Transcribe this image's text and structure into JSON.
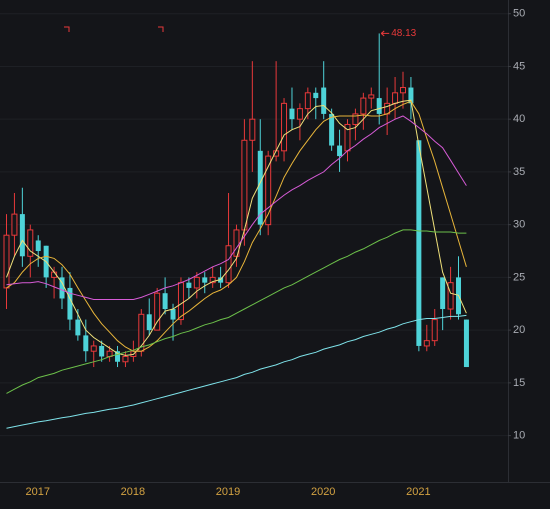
{
  "chart_data": {
    "type": "candlestick",
    "categories": [
      null,
      null,
      null,
      null,
      "2017",
      null,
      null,
      null,
      null,
      null,
      null,
      null,
      null,
      null,
      null,
      null,
      "2018",
      null,
      null,
      null,
      null,
      null,
      null,
      null,
      null,
      null,
      null,
      null,
      "2019",
      null,
      null,
      null,
      null,
      null,
      null,
      null,
      null,
      null,
      null,
      null,
      "2020",
      null,
      null,
      null,
      null,
      null,
      null,
      null,
      null,
      null,
      null,
      null,
      "2021",
      null,
      null,
      null,
      null,
      null,
      null
    ],
    "open": [
      24,
      29,
      31,
      27,
      28.5,
      28,
      25,
      25,
      24,
      21,
      19.5,
      18,
      18.5,
      17.5,
      18,
      17,
      17.5,
      18,
      21.5,
      20,
      23.5,
      22,
      21,
      24.5,
      24,
      25,
      24.5,
      25,
      24.5,
      27,
      29.5,
      38,
      37,
      30,
      36.5,
      37,
      41,
      40,
      41,
      42.5,
      43,
      40.5,
      37.5,
      37,
      39.5,
      40.5,
      42,
      42,
      40.5,
      41.5,
      42.5,
      43,
      38,
      18.5,
      19,
      25,
      22,
      25,
      21
    ],
    "high": [
      31,
      33,
      33.5,
      30,
      29,
      28,
      26,
      26,
      25.5,
      22,
      21,
      19,
      19,
      18.5,
      18.5,
      18,
      19,
      22,
      23,
      24,
      25,
      22.5,
      25,
      25,
      25.5,
      25.5,
      26,
      26,
      33,
      30,
      40,
      45.5,
      40,
      37,
      45.5,
      42,
      43,
      41.5,
      43,
      43,
      45.5,
      41,
      39,
      40,
      41,
      42.5,
      43,
      48.13,
      43,
      44,
      44.5,
      44,
      38,
      20.5,
      22,
      25,
      26,
      27,
      21
    ],
    "low": [
      22,
      27,
      26,
      25,
      26,
      24,
      23,
      22,
      20,
      19,
      17,
      16.5,
      17,
      17,
      16.5,
      16.5,
      17,
      17.5,
      19.5,
      20,
      21.5,
      19,
      20.5,
      23,
      23,
      23.5,
      24,
      24,
      24,
      26,
      28,
      35,
      29,
      29,
      36,
      36,
      39,
      38,
      40,
      40,
      40,
      37,
      35,
      36,
      38,
      39,
      41,
      39.5,
      38.5,
      40,
      41,
      40,
      18,
      18,
      18.5,
      20,
      21,
      21,
      16.5
    ],
    "close": [
      29,
      31,
      27,
      29.5,
      27.5,
      25,
      25.5,
      23,
      21,
      19.5,
      18,
      18.5,
      17.5,
      18,
      17,
      17.5,
      18,
      21.5,
      20,
      23.5,
      22,
      21,
      24.5,
      24,
      25,
      24.5,
      25,
      24.5,
      28,
      29.5,
      38,
      40,
      30,
      36.5,
      37,
      41.5,
      40,
      41,
      42.5,
      42,
      40.5,
      37.5,
      36.5,
      39.5,
      40.5,
      42,
      42.3,
      40.5,
      41.5,
      42.5,
      43,
      41.5,
      18.5,
      19,
      21,
      22,
      24.5,
      21.5,
      16.5
    ],
    "up_color": "#e8393a",
    "down_color": "#4ed3d8",
    "series": [
      {
        "color": "#efe07a",
        "values": [
          25,
          27,
          28.5,
          27.5,
          27,
          26.5,
          25.5,
          24.5,
          23,
          21.5,
          20,
          19.3,
          18.8,
          18.3,
          17.8,
          17.6,
          17.7,
          18.5,
          19.5,
          20.8,
          21.8,
          22,
          22.5,
          23,
          23.7,
          24.2,
          24.6,
          24.8,
          25.7,
          26.8,
          29.5,
          32.5,
          34,
          35.5,
          37,
          38.5,
          39,
          39.3,
          40.5,
          41.2,
          41.3,
          40.6,
          39.6,
          39,
          39.2,
          40,
          40.8,
          41,
          41.2,
          41.5,
          41.7,
          41.8,
          37.5,
          33.5,
          29.5,
          25.5,
          23.5,
          23.3,
          21.6
        ]
      },
      {
        "color": "#e8b53a",
        "values": [
          24,
          24.5,
          25.5,
          26.3,
          26.8,
          27,
          26.8,
          26.2,
          25.3,
          24,
          22.8,
          21.6,
          20.6,
          19.8,
          19,
          18.4,
          18,
          18,
          18.4,
          19,
          19.8,
          20.6,
          21.3,
          21.8,
          22.4,
          23,
          23.5,
          23.8,
          24.3,
          25,
          26.5,
          28.3,
          29.6,
          31,
          32.7,
          34.5,
          35.8,
          37,
          38,
          39,
          39.8,
          40.2,
          40.3,
          40.3,
          40.3,
          40.4,
          40.3,
          40.3,
          40.5,
          41,
          41.4,
          41.7,
          40.5,
          38.2,
          36,
          33.5,
          31,
          28.5,
          26
        ]
      },
      {
        "color": "#d65bd6",
        "values": [
          24.3,
          24.4,
          24.5,
          24.5,
          24.6,
          24.4,
          24.1,
          23.8,
          23.5,
          23.3,
          23.1,
          22.9,
          22.9,
          22.9,
          22.9,
          22.9,
          22.9,
          23.1,
          23.4,
          23.7,
          24,
          24.2,
          24.5,
          24.8,
          25.2,
          25.6,
          26,
          26.3,
          26.7,
          27.8,
          28.9,
          30,
          31,
          31.6,
          32.2,
          32.8,
          33.3,
          33.7,
          34.2,
          34.6,
          35,
          35.7,
          36.3,
          37,
          37.5,
          38.1,
          38.6,
          39.2,
          39.6,
          40,
          40.3,
          39.8,
          39.2,
          38.6,
          37.9,
          37.3,
          36.1,
          34.9,
          33.7
        ]
      },
      {
        "color": "#6cc04a",
        "values": [
          14,
          14.4,
          14.8,
          15.1,
          15.5,
          15.7,
          15.9,
          16.2,
          16.4,
          16.6,
          16.8,
          17,
          17.2,
          17.5,
          17.7,
          17.9,
          18.1,
          18.4,
          18.6,
          18.9,
          19.2,
          19.4,
          19.7,
          19.9,
          20.2,
          20.5,
          20.7,
          21,
          21.2,
          21.6,
          22,
          22.4,
          22.8,
          23.2,
          23.6,
          24,
          24.3,
          24.7,
          25.1,
          25.5,
          25.9,
          26.3,
          26.7,
          27,
          27.4,
          27.7,
          28.1,
          28.5,
          28.8,
          29.2,
          29.5,
          29.5,
          29.4,
          29.4,
          29.3,
          29.3,
          29.3,
          29.2,
          29.2
        ]
      },
      {
        "color": "#7fe3ea",
        "values": [
          10.7,
          10.85,
          11,
          11.15,
          11.3,
          11.4,
          11.55,
          11.7,
          11.8,
          11.95,
          12.1,
          12.2,
          12.35,
          12.5,
          12.6,
          12.75,
          12.9,
          13.1,
          13.3,
          13.5,
          13.7,
          13.9,
          14.1,
          14.3,
          14.5,
          14.7,
          14.9,
          15.1,
          15.3,
          15.5,
          15.8,
          16,
          16.3,
          16.5,
          16.7,
          17,
          17.2,
          17.5,
          17.7,
          17.9,
          18.2,
          18.4,
          18.6,
          18.9,
          19.1,
          19.4,
          19.6,
          19.8,
          20.1,
          20.3,
          20.6,
          20.8,
          21,
          21.1,
          21.1,
          21.2,
          21.3,
          21.3,
          21.4
        ]
      }
    ],
    "ylim": [
      5.6,
      51.3
    ],
    "yticks": [
      10,
      15,
      20,
      25,
      30,
      35,
      40,
      45,
      50
    ],
    "grid": true
  }
}
